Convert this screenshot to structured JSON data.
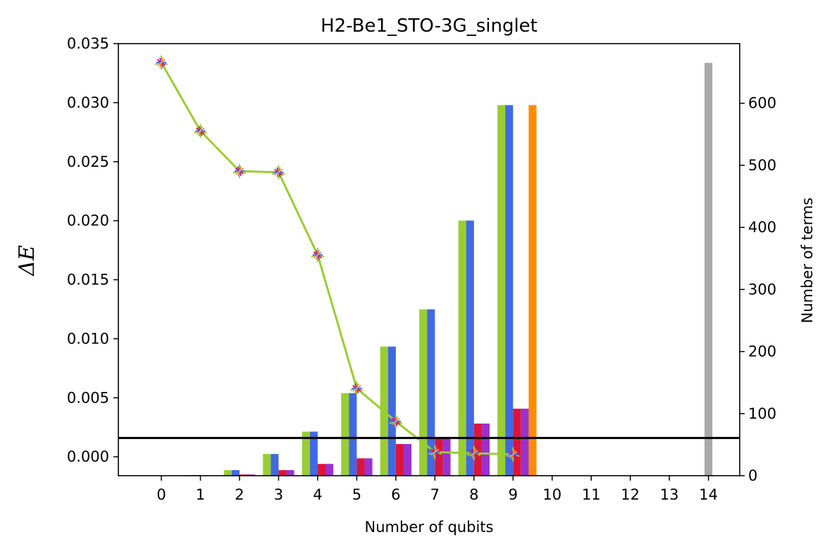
{
  "chart_data": {
    "type": "bar",
    "title": "H2-Be1_STO-3G_singlet",
    "xlabel": "Number of qubits",
    "ylabel_left": "ΔE",
    "ylabel_right": "Number of terms",
    "x_ticks": [
      "0",
      "1",
      "2",
      "3",
      "4",
      "5",
      "6",
      "7",
      "8",
      "9",
      "10",
      "11",
      "12",
      "13",
      "14"
    ],
    "xlim": [
      -1.1,
      14.8
    ],
    "y_left": {
      "lim": [
        -0.0016,
        0.035
      ],
      "ticks": [
        0.0,
        0.005,
        0.01,
        0.015,
        0.02,
        0.025,
        0.03,
        0.035
      ],
      "tick_labels": [
        "0.000",
        "0.005",
        "0.010",
        "0.015",
        "0.020",
        "0.025",
        "0.030",
        "0.035"
      ]
    },
    "y_right": {
      "lim": [
        0,
        696
      ],
      "ticks": [
        0,
        100,
        200,
        300,
        400,
        500,
        600
      ],
      "tick_labels": [
        "0",
        "100",
        "200",
        "300",
        "400",
        "500",
        "600"
      ]
    },
    "bar_series": [
      {
        "color": "#9acd32",
        "offset": -0.3,
        "width": 0.2,
        "x": [
          0,
          1,
          2,
          3,
          4,
          5,
          6,
          7,
          8,
          9
        ],
        "values": [
          0,
          1,
          9,
          35,
          71,
          133,
          208,
          268,
          411,
          597
        ]
      },
      {
        "color": "#4169e1",
        "offset": -0.1,
        "width": 0.2,
        "x": [
          0,
          1,
          2,
          3,
          4,
          5,
          6,
          7,
          8,
          9
        ],
        "values": [
          0,
          1,
          9,
          35,
          71,
          133,
          208,
          268,
          411,
          597
        ]
      },
      {
        "color": "#dc143c",
        "offset": 0.1,
        "width": 0.2,
        "x": [
          0,
          1,
          2,
          3,
          4,
          5,
          6,
          7,
          8,
          9
        ],
        "values": [
          0,
          0,
          2,
          9,
          19,
          28,
          51,
          62,
          84,
          108
        ]
      },
      {
        "color": "#9932cc",
        "offset": 0.3,
        "width": 0.2,
        "x": [
          0,
          1,
          2,
          3,
          4,
          5,
          6,
          7,
          8,
          9
        ],
        "values": [
          0,
          0,
          2,
          9,
          19,
          28,
          51,
          62,
          84,
          108
        ]
      },
      {
        "color": "#ff8c00",
        "offset": 0.5,
        "width": 0.2,
        "x": [
          9
        ],
        "values": [
          597
        ]
      },
      {
        "color": "#a9a9a9",
        "offset": 0.0,
        "width": 0.2,
        "x": [
          14
        ],
        "values": [
          665
        ]
      }
    ],
    "line_series": {
      "color": "#9acd32",
      "x": [
        0,
        1,
        2,
        3,
        4,
        5,
        6,
        7,
        8,
        9
      ],
      "y": [
        0.0334,
        0.0276,
        0.0242,
        0.0241,
        0.0171,
        0.0058,
        0.003,
        0.0004,
        0.0003,
        0.0002
      ],
      "yerr": 0.0006,
      "marker_colors": [
        "#4169e1",
        "#dc143c",
        "#9932cc",
        "#ff8c00",
        "#a9a9a9"
      ]
    },
    "hline": {
      "y": 0.0016,
      "color": "#000000"
    }
  }
}
